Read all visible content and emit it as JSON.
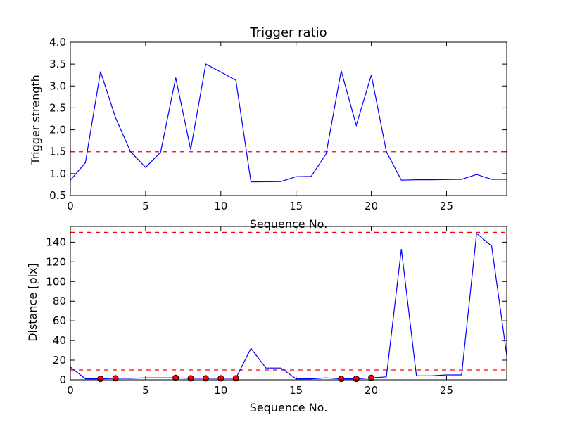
{
  "chart_data": [
    {
      "type": "line",
      "title": "Trigger ratio",
      "xlabel": "Sequence No.",
      "ylabel": "Trigger strength",
      "xlim": [
        0,
        29
      ],
      "ylim": [
        0.5,
        4.0
      ],
      "xticks": [
        "0",
        "5",
        "10",
        "15",
        "20",
        "25"
      ],
      "yticks": [
        "0.5",
        "1.0",
        "1.5",
        "2.0",
        "2.5",
        "3.0",
        "3.5",
        "4.0"
      ],
      "grid": false,
      "threshold": 1.5,
      "line_color": "#0000ff",
      "threshold_color": "#ff0000",
      "x": [
        0,
        1,
        2,
        3,
        4,
        5,
        6,
        7,
        8,
        9,
        10,
        11,
        12,
        13,
        14,
        15,
        16,
        17,
        18,
        19,
        20,
        21,
        22,
        23,
        24,
        25,
        26,
        27,
        28,
        29
      ],
      "values": [
        0.85,
        1.25,
        3.33,
        2.28,
        1.5,
        1.14,
        1.49,
        3.19,
        1.55,
        3.5,
        3.32,
        3.13,
        0.81,
        0.815,
        0.82,
        0.93,
        0.935,
        1.45,
        3.35,
        2.1,
        3.25,
        1.5,
        0.85,
        0.86,
        0.86,
        0.865,
        0.87,
        0.98,
        0.87,
        0.87
      ]
    },
    {
      "type": "line",
      "title": "",
      "xlabel": "Sequence No.",
      "ylabel": "Distance [pix]",
      "xlim": [
        0,
        29
      ],
      "ylim": [
        0,
        156
      ],
      "xticks": [
        "0",
        "5",
        "10",
        "15",
        "20",
        "25"
      ],
      "yticks": [
        "0",
        "20",
        "40",
        "60",
        "80",
        "100",
        "120",
        "140"
      ],
      "grid": false,
      "thresholds": [
        10,
        150
      ],
      "line_color": "#0000ff",
      "threshold_color": "#ff0000",
      "marker_color": "#ff0000",
      "x": [
        0,
        1,
        2,
        3,
        4,
        5,
        6,
        7,
        8,
        9,
        10,
        11,
        12,
        13,
        14,
        15,
        16,
        17,
        18,
        19,
        20,
        21,
        22,
        23,
        24,
        25,
        26,
        27,
        28,
        29
      ],
      "values": [
        13,
        1,
        1,
        1.5,
        1.5,
        2,
        2,
        2,
        1.5,
        1.5,
        1.5,
        1.5,
        32,
        12,
        12,
        1,
        1,
        2,
        1,
        1,
        2,
        3,
        133,
        4,
        4,
        5,
        5,
        149,
        136,
        25
      ],
      "markers": {
        "x": [
          2,
          3,
          7,
          8,
          9,
          10,
          11,
          18,
          19,
          20
        ],
        "values": [
          1,
          1.5,
          2,
          1.5,
          1.5,
          1.5,
          1.5,
          1,
          1,
          2
        ]
      }
    }
  ]
}
